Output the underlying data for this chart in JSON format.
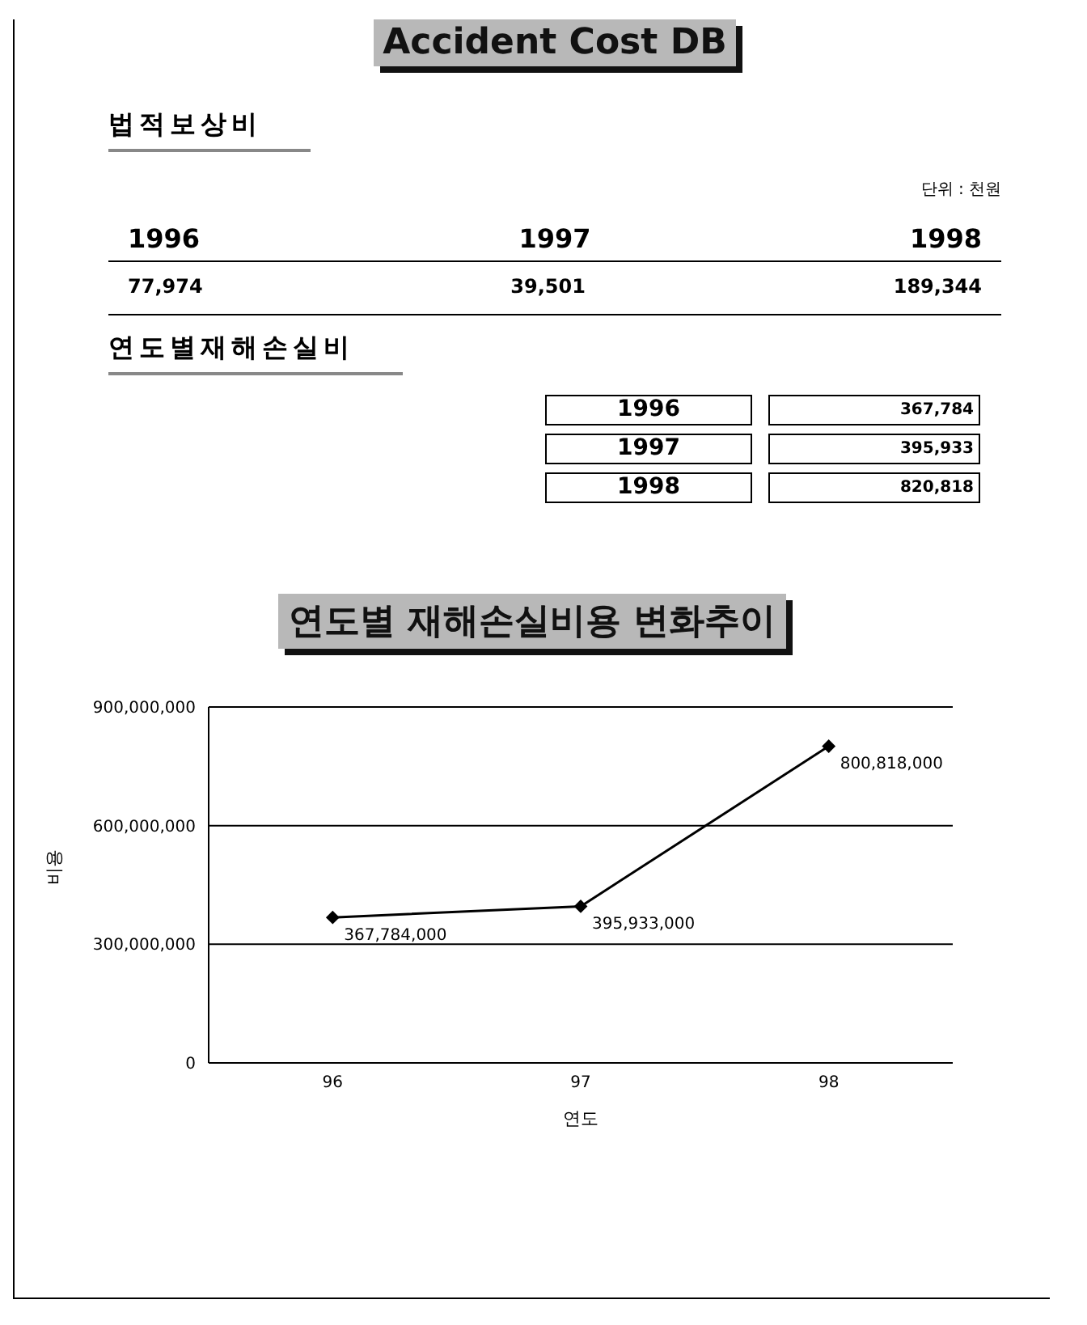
{
  "chart_data": [
    {
      "type": "other",
      "title": "Accident Cost DB",
      "subtitle": "법적보상비",
      "annotations": [
        "단위 : 천원"
      ],
      "categories": [
        "1996",
        "1997",
        "1998"
      ],
      "value_labels": [
        "77,974",
        "39,501",
        "189,344"
      ]
    },
    {
      "type": "other",
      "title": "연도별재해손실비",
      "categories": [
        "1996",
        "1997",
        "1998"
      ],
      "value_labels": [
        "367,784",
        "395,933",
        "820,818"
      ]
    },
    {
      "type": "line",
      "title": "연도별 재해손실비용 변화추이",
      "xlabel": "연도",
      "ylabel": "비용",
      "categories": [
        "96",
        "97",
        "98"
      ],
      "series": [
        {
          "color": "#000000",
          "values": [
            367784000,
            395933000,
            800818000
          ],
          "value_labels": [
            "367,784,000",
            "395,933,000",
            "800,818,000"
          ]
        }
      ],
      "ylim": [
        0,
        900000000
      ],
      "yticks": [
        0,
        {
          "value": 300000000,
          "label": "300,000,000"
        },
        {
          "value": 600000000,
          "label": "600,000,000"
        },
        {
          "value": 900000000,
          "label": "900,000,000"
        }
      ],
      "grid": "y",
      "marker": "diamond",
      "line_style": "solid"
    }
  ]
}
